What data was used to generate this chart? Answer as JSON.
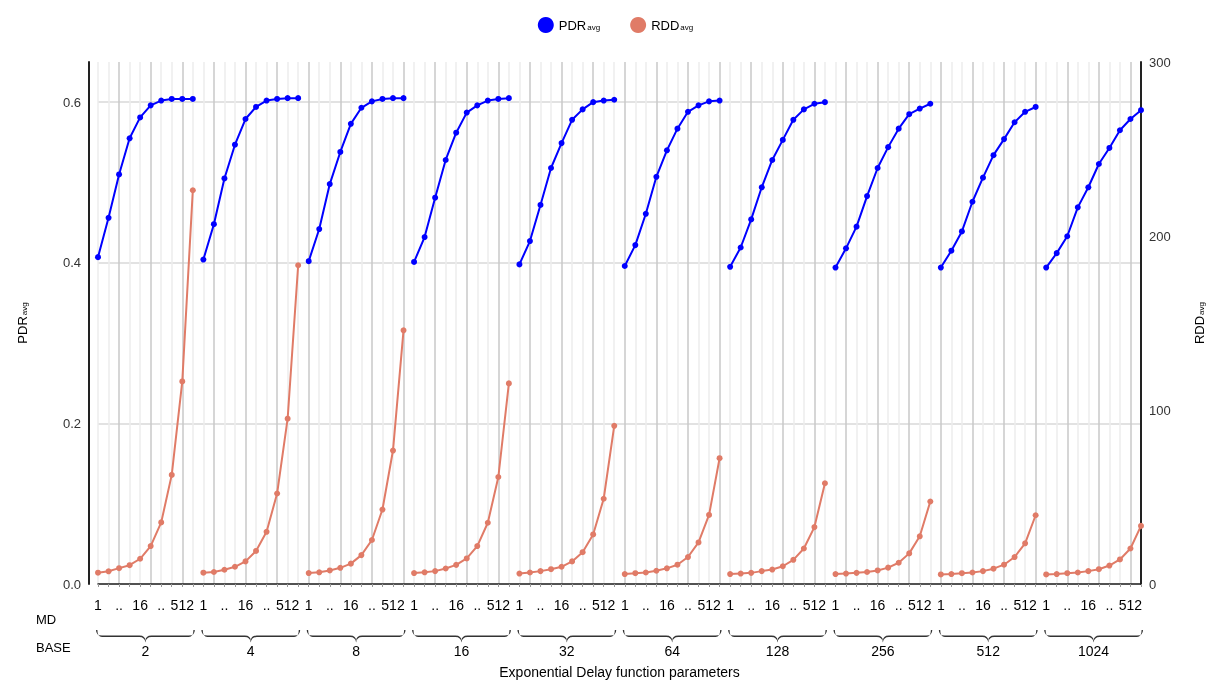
{
  "chart_data": {
    "type": "line",
    "xlabel": "Exponential Delay function parameters",
    "ylabel": "PDR$_{avg}$",
    "y2label": "RDD$_{avg}$",
    "categories": [
      "1",
      null,
      "..",
      null,
      "16",
      null,
      "..",
      null,
      "512",
      null,
      "1",
      null,
      "..",
      null,
      "16",
      null,
      "..",
      null,
      "512",
      null,
      "1",
      null,
      "..",
      null,
      "16",
      null,
      "..",
      null,
      "512",
      null,
      "1",
      null,
      "..",
      null,
      "16",
      null,
      "..",
      null,
      "512",
      null,
      "1",
      null,
      "..",
      null,
      "16",
      null,
      "..",
      null,
      "512",
      null,
      "1",
      null,
      "..",
      null,
      "16",
      null,
      "..",
      null,
      "512",
      null,
      "1",
      null,
      "..",
      null,
      "16",
      null,
      "..",
      null,
      "512",
      null,
      "1",
      null,
      "..",
      null,
      "16",
      null,
      "..",
      null,
      "512",
      null,
      "1",
      null,
      "..",
      null,
      "16",
      null,
      "..",
      null,
      "512",
      null,
      "1",
      null,
      "..",
      null,
      "16",
      null,
      "..",
      null,
      "512",
      null
    ],
    "annotations": [
      "MD",
      "BASE",
      "2",
      "4",
      "8",
      "16",
      "32",
      "64",
      "128",
      "256",
      "512",
      "1024"
    ],
    "series": [
      {
        "name": "PDR$_{avg}$",
        "color": "#0000ff",
        "values": [
          0.407,
          0.456,
          0.51,
          0.555,
          0.581,
          0.596,
          0.602,
          0.604,
          0.604,
          0.604,
          0.404,
          0.448,
          0.505,
          0.547,
          0.579,
          0.594,
          0.602,
          0.604,
          0.605,
          0.605,
          0.402,
          0.442,
          0.498,
          0.538,
          0.573,
          0.593,
          0.601,
          0.604,
          0.605,
          0.605,
          0.401,
          0.432,
          0.481,
          0.528,
          0.562,
          0.587,
          0.596,
          0.602,
          0.604,
          0.605,
          0.398,
          0.427,
          0.472,
          0.518,
          0.549,
          0.578,
          0.591,
          0.6,
          0.602,
          0.603,
          0.396,
          0.422,
          0.461,
          0.507,
          0.54,
          0.567,
          0.588,
          0.596,
          0.601,
          0.602,
          0.395,
          0.419,
          0.454,
          0.494,
          0.528,
          0.553,
          0.578,
          0.591,
          0.598,
          0.6,
          0.394,
          0.418,
          0.445,
          0.483,
          0.518,
          0.544,
          0.567,
          0.585,
          0.592,
          0.598,
          0.394,
          0.415,
          0.439,
          0.476,
          0.506,
          0.534,
          0.554,
          0.575,
          0.588,
          0.594,
          0.394,
          0.412,
          0.433,
          0.469,
          0.494,
          0.523,
          0.543,
          0.565,
          0.579,
          0.59
        ]
      },
      {
        "name": "RDD$_{avg}$",
        "color": "#e07b67",
        "axis": "y2",
        "values": [
          6.5,
          7.3,
          9.1,
          10.8,
          14.5,
          21.8,
          35.4,
          62.7,
          116.4,
          226.3,
          6.5,
          6.9,
          8.2,
          9.9,
          13.0,
          19.0,
          30.0,
          52.0,
          95.0,
          183.2,
          6.3,
          6.7,
          7.8,
          9.3,
          11.7,
          16.6,
          25.3,
          42.8,
          76.7,
          145.8,
          6.3,
          6.7,
          7.4,
          8.9,
          11.0,
          14.7,
          21.8,
          35.2,
          61.5,
          115.3,
          6.0,
          6.6,
          7.4,
          8.5,
          9.9,
          13.0,
          18.3,
          28.5,
          49.0,
          90.9,
          5.7,
          6.2,
          6.6,
          7.6,
          9.0,
          11.1,
          15.5,
          23.9,
          39.7,
          72.3,
          5.7,
          6.0,
          6.4,
          7.4,
          8.3,
          10.2,
          13.9,
          20.4,
          32.7,
          57.9,
          5.7,
          6.0,
          6.4,
          6.9,
          7.8,
          9.4,
          12.2,
          17.6,
          27.4,
          47.4,
          5.5,
          5.7,
          6.2,
          6.6,
          7.4,
          8.8,
          11.1,
          15.5,
          23.4,
          39.5,
          5.5,
          5.7,
          6.2,
          6.6,
          7.4,
          8.5,
          10.6,
          14.1,
          20.4,
          33.4
        ]
      }
    ],
    "ylim": [
      0,
      0.65
    ],
    "yticks": [
      {
        "value": 0,
        "label": "0.0"
      },
      0.2,
      0.4,
      0.6
    ],
    "y2lim": [
      0,
      300
    ],
    "y2ticks": [
      0,
      100,
      200,
      300
    ],
    "legend": "top",
    "grid": true,
    "marker": "circle"
  }
}
